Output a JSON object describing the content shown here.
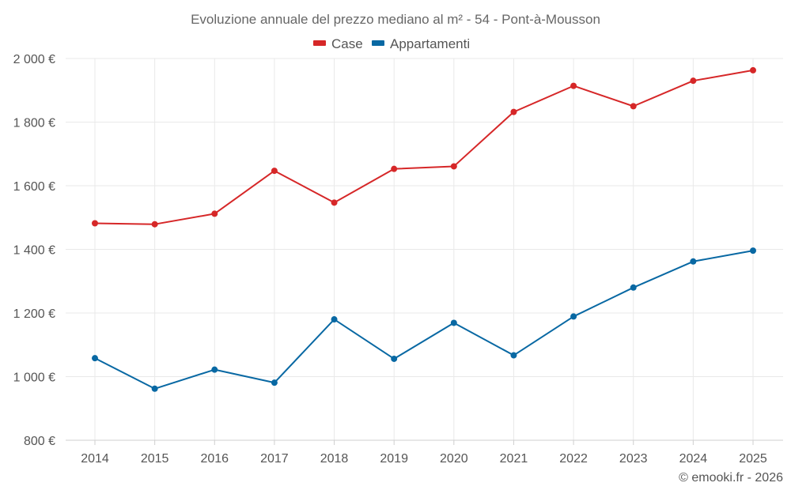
{
  "chart_data": {
    "type": "line",
    "title": "Evoluzione annuale del prezzo mediano al m² - 54 - Pont-à-Mousson",
    "categories": [
      "2014",
      "2015",
      "2016",
      "2017",
      "2018",
      "2019",
      "2020",
      "2021",
      "2022",
      "2023",
      "2024",
      "2025"
    ],
    "series": [
      {
        "name": "Case",
        "color": "#d62728",
        "values": [
          1482,
          1479,
          1512,
          1647,
          1547,
          1653,
          1661,
          1832,
          1914,
          1850,
          1930,
          1963
        ]
      },
      {
        "name": "Appartamenti",
        "color": "#0868a3",
        "values": [
          1058,
          962,
          1022,
          981,
          1180,
          1056,
          1169,
          1067,
          1189,
          1280,
          1362,
          1396
        ]
      }
    ],
    "ylim": [
      800,
      2000
    ],
    "yticks": [
      800,
      1000,
      1200,
      1400,
      1600,
      1800,
      2000
    ],
    "ytick_labels": [
      "800 €",
      "1 000 €",
      "1 200 €",
      "1 400 €",
      "1 600 €",
      "1 800 €",
      "2 000 €"
    ],
    "xlabel": "",
    "ylabel": "",
    "legend_position": "top-center",
    "grid": true
  },
  "credit": "© emooki.fr - 2026"
}
